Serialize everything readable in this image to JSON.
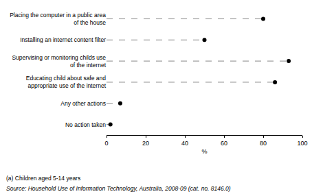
{
  "chart_data": {
    "type": "scatter",
    "orientation": "horizontal",
    "categories": [
      "Placing the computer in a public area of the house",
      "Installing an internet content filter",
      "Supervising or monitoring childs use of the internet",
      "Educating child about safe and appropriate use of the internet",
      "Any other actions",
      "No action taken"
    ],
    "values": [
      80,
      50,
      93,
      86,
      7,
      2
    ],
    "color": "#000000",
    "marker": "circle",
    "line_style": "dashed",
    "xlim": [
      0,
      100
    ],
    "xticks": [
      0,
      20,
      40,
      60,
      80,
      100
    ],
    "x_label": "%",
    "grid": false,
    "notes": [
      "(a) Children aged 5-14 years",
      "Source: Household Use of Information Technology, Australia, 2008-09 (cat. no. 8146.0)"
    ]
  }
}
